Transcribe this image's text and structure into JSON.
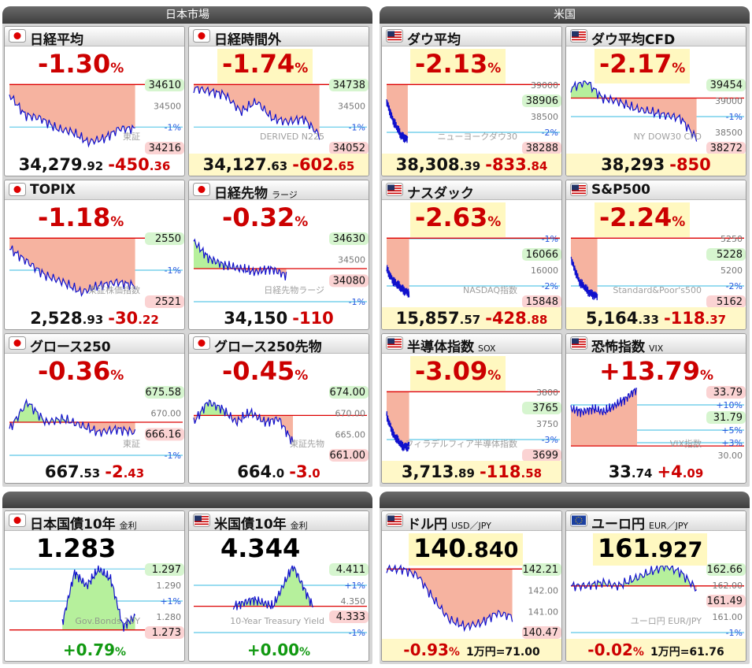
{
  "sections": [
    {
      "title": "日本市場",
      "panels": [
        {
          "flag": "jp",
          "name": "日経平均",
          "pct": "-1.30",
          "pct_unit": "%",
          "pct_color": "red",
          "highlight": false,
          "price": "34,279",
          "price_dec": ".92",
          "change": "-450",
          "change_dec": ".36",
          "labels": [
            {
              "text": "34610",
              "kind": "up"
            },
            {
              "text": "34500",
              "kind": "level"
            },
            {
              "text": "-1%",
              "kind": "pct"
            },
            {
              "text": "34216",
              "kind": "down"
            }
          ],
          "watermark": "東証"
        },
        {
          "flag": "jp",
          "name": "日経時間外",
          "pct": "-1.74",
          "pct_unit": "%",
          "pct_color": "red",
          "highlight": true,
          "price": "34,127",
          "price_dec": ".63",
          "change": "-602",
          "change_dec": ".65",
          "labels": [
            {
              "text": "34738",
              "kind": "up"
            },
            {
              "text": "34500",
              "kind": "level"
            },
            {
              "text": "-1%",
              "kind": "pct"
            },
            {
              "text": "34052",
              "kind": "down"
            }
          ],
          "watermark": "DERIVED N225"
        },
        {
          "flag": "jp",
          "name": "TOPIX",
          "pct": "-1.18",
          "pct_unit": "%",
          "pct_color": "red",
          "highlight": false,
          "price": "2,528",
          "price_dec": ".93",
          "change": "-30",
          "change_dec": ".22",
          "labels": [
            {
              "text": "2550",
              "kind": "up"
            },
            {
              "text": "-1%",
              "kind": "pct"
            },
            {
              "text": "2521",
              "kind": "down"
            }
          ],
          "watermark": "東証株価指数"
        },
        {
          "flag": "jp",
          "name": "日経先物",
          "sub": "ラージ",
          "pct": "-0.32",
          "pct_unit": "%",
          "pct_color": "red",
          "highlight": false,
          "price": "34,150",
          "change": "-110",
          "labels": [
            {
              "text": "34630",
              "kind": "up"
            },
            {
              "text": "34500",
              "kind": "level"
            },
            {
              "text": "34080",
              "kind": "down"
            },
            {
              "text": "-1%",
              "kind": "pct"
            }
          ],
          "watermark": "日経先物ラージ"
        },
        {
          "flag": "jp",
          "name": "グロース250",
          "pct": "-0.36",
          "pct_unit": "%",
          "pct_color": "red",
          "highlight": false,
          "price": "667",
          "price_dec": ".53",
          "change": "-2",
          "change_dec": ".43",
          "labels": [
            {
              "text": "675.58",
              "kind": "up"
            },
            {
              "text": "670.00",
              "kind": "level"
            },
            {
              "text": "666.16",
              "kind": "down"
            },
            {
              "text": "-1%",
              "kind": "pct"
            }
          ],
          "watermark": "東証"
        },
        {
          "flag": "jp",
          "name": "グロース250先物",
          "pct": "-0.45",
          "pct_unit": "%",
          "pct_color": "red",
          "highlight": false,
          "price": "664",
          "price_dec": ".0",
          "change": "-3",
          "change_dec": ".0",
          "labels": [
            {
              "text": "674.00",
              "kind": "up"
            },
            {
              "text": "670.00",
              "kind": "level"
            },
            {
              "text": "665.00",
              "kind": "level"
            },
            {
              "text": "661.00",
              "kind": "down"
            }
          ],
          "watermark": "東証先物"
        }
      ]
    },
    {
      "title": "米国",
      "panels": [
        {
          "flag": "us",
          "name": "ダウ平均",
          "pct": "-2.13",
          "pct_unit": "%",
          "pct_color": "red",
          "highlight": true,
          "price": "38,308",
          "price_dec": ".39",
          "change": "-833",
          "change_dec": ".84",
          "labels": [
            {
              "text": "39000",
              "kind": "level"
            },
            {
              "text": "38906",
              "kind": "up"
            },
            {
              "text": "38500",
              "kind": "level"
            },
            {
              "text": "-2%",
              "kind": "pct"
            },
            {
              "text": "38288",
              "kind": "down"
            }
          ],
          "watermark": "ニューヨークダウ30"
        },
        {
          "flag": "us",
          "name": "ダウ平均CFD",
          "pct": "-2.17",
          "pct_unit": "%",
          "pct_color": "red",
          "highlight": true,
          "price": "38,293",
          "change": "-850",
          "labels": [
            {
              "text": "39454",
              "kind": "up"
            },
            {
              "text": "39000",
              "kind": "level"
            },
            {
              "text": "-1%",
              "kind": "pct"
            },
            {
              "text": "38500",
              "kind": "level"
            },
            {
              "text": "38272",
              "kind": "down"
            }
          ],
          "watermark": "NY DOW30 CFD"
        },
        {
          "flag": "us",
          "name": "ナスダック",
          "pct": "-2.63",
          "pct_unit": "%",
          "pct_color": "red",
          "highlight": true,
          "price": "15,857",
          "price_dec": ".57",
          "change": "-428",
          "change_dec": ".88",
          "labels": [
            {
              "text": "-1%",
              "kind": "pct"
            },
            {
              "text": "16066",
              "kind": "up"
            },
            {
              "text": "16000",
              "kind": "level"
            },
            {
              "text": "-2%",
              "kind": "pct"
            },
            {
              "text": "15848",
              "kind": "down"
            }
          ],
          "watermark": "NASDAQ指数"
        },
        {
          "flag": "us",
          "name": "S&P500",
          "pct": "-2.24",
          "pct_unit": "%",
          "pct_color": "red",
          "highlight": true,
          "price": "5,164",
          "price_dec": ".33",
          "change": "-118",
          "change_dec": ".37",
          "labels": [
            {
              "text": "5250",
              "kind": "level"
            },
            {
              "text": "5228",
              "kind": "up"
            },
            {
              "text": "5200",
              "kind": "level"
            },
            {
              "text": "-2%",
              "kind": "pct"
            },
            {
              "text": "5162",
              "kind": "down"
            }
          ],
          "watermark": "Standard&Poor's500"
        },
        {
          "flag": "us",
          "name": "半導体指数",
          "sub": "SOX",
          "pct": "-3.09",
          "pct_unit": "%",
          "pct_color": "red",
          "highlight": true,
          "price": "3,713",
          "price_dec": ".89",
          "change": "-118",
          "change_dec": ".58",
          "labels": [
            {
              "text": "3800",
              "kind": "level"
            },
            {
              "text": "3765",
              "kind": "up"
            },
            {
              "text": "3750",
              "kind": "level"
            },
            {
              "text": "-3%",
              "kind": "pct"
            },
            {
              "text": "3699",
              "kind": "down"
            }
          ],
          "watermark": "フィラデルフィア半導体指数"
        },
        {
          "flag": "us",
          "name": "恐怖指数",
          "sub": "VIX",
          "pct": "+13.79",
          "pct_unit": "%",
          "pct_color": "red",
          "highlight": false,
          "price": "33",
          "price_dec": ".74",
          "change": "+4",
          "change_dec": ".09",
          "labels": [
            {
              "text": "33.79",
              "kind": "down"
            },
            {
              "text": "+10%",
              "kind": "pct"
            },
            {
              "text": "31.79",
              "kind": "up"
            },
            {
              "text": "+5%",
              "kind": "pct"
            },
            {
              "text": "+3%",
              "kind": "pct"
            },
            {
              "text": "30.00",
              "kind": "level"
            }
          ],
          "watermark": "VIX指数"
        }
      ]
    },
    {
      "panels": [
        {
          "flag": "jp",
          "name": "日本国債10年",
          "sub": "金利",
          "value": "1.283",
          "highlight": false,
          "foot_pct": "+0.79",
          "foot_unit": "%",
          "foot_color": "green",
          "labels": [
            {
              "text": "1.297",
              "kind": "up"
            },
            {
              "text": "1.290",
              "kind": "level"
            },
            {
              "text": "+1%",
              "kind": "pct"
            },
            {
              "text": "1.280",
              "kind": "level"
            },
            {
              "text": "1.273",
              "kind": "down"
            }
          ],
          "watermark": "Gov.Bonds 10Y"
        },
        {
          "flag": "us",
          "name": "米国債10年",
          "sub": "金利",
          "value": "4.344",
          "highlight": false,
          "foot_pct": "+0.00",
          "foot_unit": "%",
          "foot_color": "green",
          "labels": [
            {
              "text": "4.411",
              "kind": "up"
            },
            {
              "text": "+1%",
              "kind": "pct"
            },
            {
              "text": "4.350",
              "kind": "level"
            },
            {
              "text": "4.333",
              "kind": "down"
            },
            {
              "text": "-1%",
              "kind": "pct"
            }
          ],
          "watermark": "10-Year Treasury Yield"
        }
      ]
    },
    {
      "panels": [
        {
          "flag": "us",
          "name": "ドル円",
          "sub": "USD／JPY",
          "value": "140",
          "value_dec": ".840",
          "highlight": true,
          "foot_pct": "-0.93",
          "foot_unit": "%",
          "foot_color": "red",
          "foot_note": "1万円=71.00",
          "labels": [
            {
              "text": "142.21",
              "kind": "up"
            },
            {
              "text": "142.00",
              "kind": "level"
            },
            {
              "text": "141.00",
              "kind": "level"
            },
            {
              "text": "140.47",
              "kind": "down"
            }
          ]
        },
        {
          "flag": "eu",
          "name": "ユーロ円",
          "sub": "EUR／JPY",
          "value": "161",
          "value_dec": ".927",
          "highlight": true,
          "foot_pct": "-0.02",
          "foot_unit": "%",
          "foot_color": "red",
          "foot_note": "1万円=61.76",
          "labels": [
            {
              "text": "162.66",
              "kind": "up"
            },
            {
              "text": "162.00",
              "kind": "level"
            },
            {
              "text": "161.49",
              "kind": "down"
            },
            {
              "text": "161.00",
              "kind": "level"
            },
            {
              "text": "-1%",
              "kind": "pct"
            }
          ],
          "watermark": "ユーロ円 EUR/JPY"
        }
      ]
    }
  ]
}
